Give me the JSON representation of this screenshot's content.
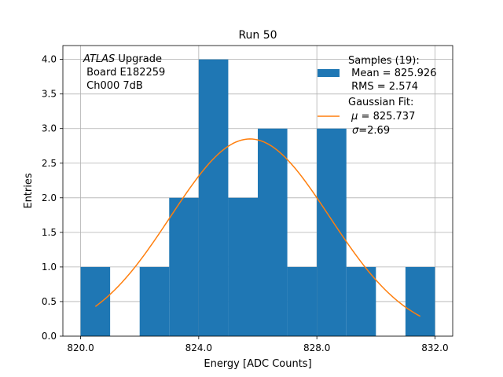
{
  "chart_data": {
    "type": "bar",
    "title": "Run 50",
    "xlabel": "Energy [ADC Counts]",
    "ylabel": "Entries",
    "xlim": [
      819.4,
      832.6
    ],
    "ylim": [
      0,
      4.2
    ],
    "grid": true,
    "x_ticks": [
      820,
      824,
      828,
      832
    ],
    "x_tick_labels": [
      "820.0",
      "824.0",
      "828.0",
      "832.0"
    ],
    "y_ticks": [
      0,
      0.5,
      1,
      1.5,
      2,
      2.5,
      3,
      3.5,
      4
    ],
    "y_tick_labels": [
      "0.0",
      "0.5",
      "1.0",
      "1.5",
      "2.0",
      "2.5",
      "3.0",
      "3.5",
      "4.0"
    ],
    "bin_edges": [
      820,
      821,
      822,
      823,
      824,
      825,
      826,
      827,
      828,
      829,
      830,
      831,
      832
    ],
    "counts": [
      1,
      0,
      1,
      2,
      4,
      2,
      3,
      1,
      3,
      1,
      0,
      1
    ],
    "bar_color": "#1f77b4",
    "fit": {
      "mu": 825.737,
      "sigma": 2.69,
      "amplitude": 2.85,
      "x_start": 820.5,
      "x_end": 831.5,
      "color": "#ff7f0e"
    },
    "annotation": {
      "lines": [
        {
          "italic": "ATLAS",
          "rest": " Upgrade"
        },
        {
          "italic": "",
          "rest": " Board E182259"
        },
        {
          "italic": "",
          "rest": " Ch000 7dB"
        }
      ]
    },
    "legend": {
      "position": "top-right",
      "histogram": {
        "line1": "Samples (19):",
        "line2": " Mean = 825.926",
        "line3": " RMS = 2.574"
      },
      "fit": {
        "line1": "Gaussian Fit:",
        "line2_symbol": "μ",
        "line2_rest": " = 825.737",
        "line3_symbol": "σ",
        "line3_rest": "=2.69"
      }
    }
  }
}
